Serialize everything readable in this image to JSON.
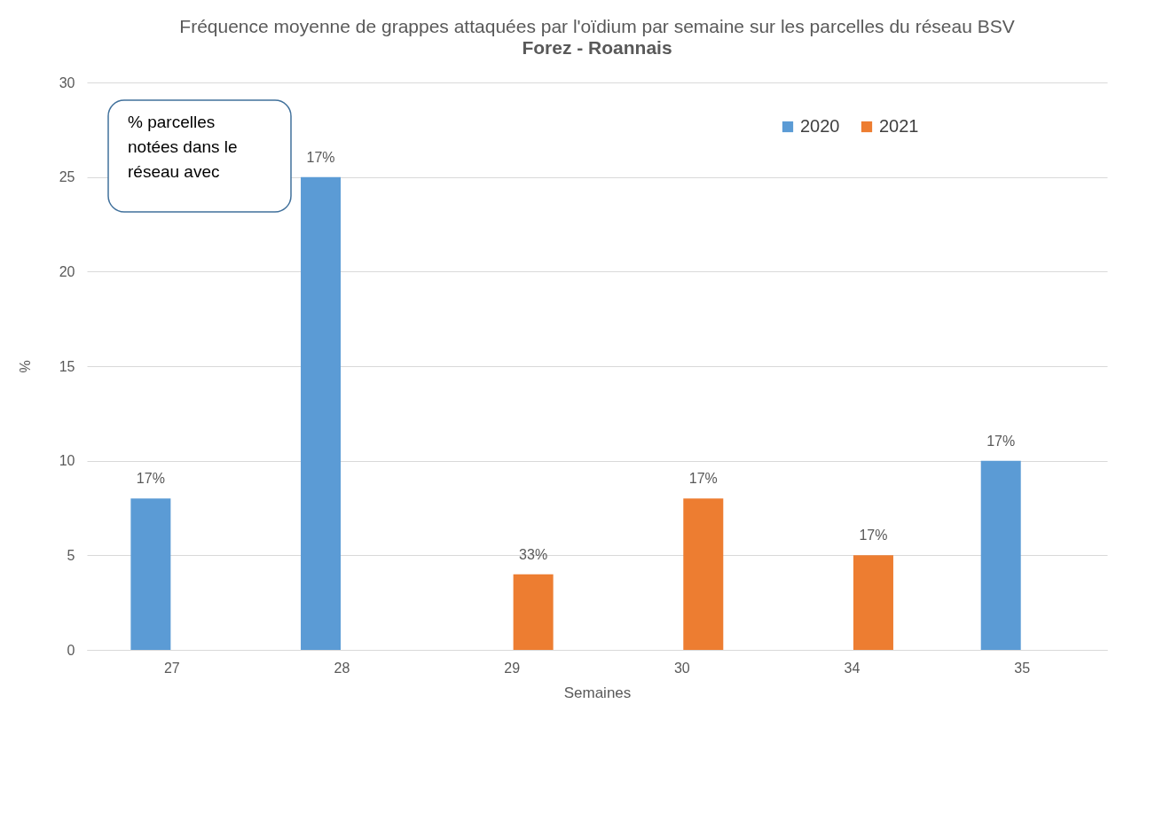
{
  "chart_data": {
    "type": "bar",
    "title": "Fréquence moyenne de grappes attaquées par l'oïdium par semaine sur les parcelles du réseau BSV",
    "subtitle": "Forez - Roannais",
    "xlabel": "Semaines",
    "ylabel": "%",
    "categories": [
      "27",
      "28",
      "29",
      "30",
      "34",
      "35"
    ],
    "series": [
      {
        "name": "2020",
        "color": "#5b9bd5",
        "values": [
          8,
          25,
          null,
          null,
          null,
          10
        ]
      },
      {
        "name": "2021",
        "color": "#ed7d31",
        "values": [
          null,
          null,
          4,
          8,
          5,
          null
        ]
      }
    ],
    "ylim": [
      0,
      30
    ],
    "yticks": [
      0,
      5,
      10,
      15,
      20,
      25,
      30
    ],
    "grid": "y",
    "legend": "top right",
    "annotations": [
      "% parcelles notées dans le réseau avec",
      {
        "text": "17%",
        "x": "27",
        "y": 8
      },
      {
        "text": "17%",
        "x": "28",
        "y": 25
      },
      {
        "text": "33%",
        "x": "29",
        "y": 4
      },
      {
        "text": "17%",
        "x": "30",
        "y": 8
      },
      {
        "text": "17%",
        "x": "34",
        "y": 5
      },
      {
        "text": "17%",
        "x": "35",
        "y": 10
      }
    ]
  }
}
